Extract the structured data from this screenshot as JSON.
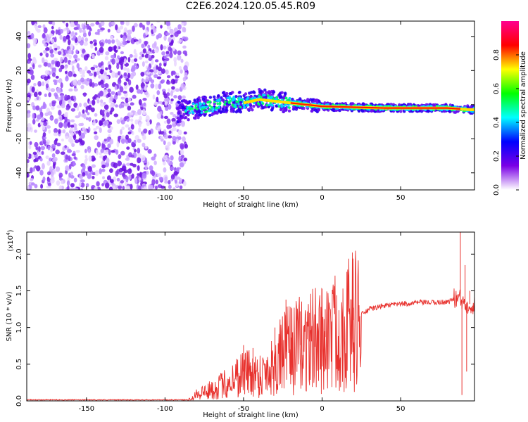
{
  "title": "C2E6.2024.120.05.45.R09",
  "chart_data": [
    {
      "type": "heatmap",
      "xlabel": "Height of straight line (km)",
      "ylabel": "Frequency (Hz)",
      "xlim": [
        -188,
        97
      ],
      "ylim": [
        -50,
        49
      ],
      "x_ticks": [
        -150,
        -100,
        -50,
        0,
        50
      ],
      "y_ticks": [
        -40,
        -20,
        0,
        20,
        40
      ],
      "x_tick_labels": [
        "-150",
        "-100",
        "-50",
        "0",
        "50"
      ],
      "y_tick_labels": [
        "-40",
        "-20",
        "0",
        "20",
        "40"
      ],
      "colorbar": {
        "label": "Normalized spectral amplitude",
        "range": [
          0,
          1
        ],
        "ticks": [
          0.0,
          0.2,
          0.4,
          0.6,
          0.8
        ],
        "tick_labels": [
          "0.0",
          "0.2",
          "0.4",
          "0.6",
          "0.8"
        ],
        "colors": [
          "#ffffff",
          "#7a00e6",
          "#0000ff",
          "#00ffff",
          "#00ff00",
          "#ffff00",
          "#ff0000",
          "#ff0090"
        ]
      },
      "ridge": [
        {
          "x": -90,
          "y": -4
        },
        {
          "x": -80,
          "y": -2
        },
        {
          "x": -70,
          "y": -1
        },
        {
          "x": -60,
          "y": 2
        },
        {
          "x": -50,
          "y": 1
        },
        {
          "x": -40,
          "y": 3
        },
        {
          "x": -30,
          "y": 2
        },
        {
          "x": -20,
          "y": 1
        },
        {
          "x": -10,
          "y": 0
        },
        {
          "x": 0,
          "y": -1
        },
        {
          "x": 20,
          "y": -1.5
        },
        {
          "x": 40,
          "y": -2
        },
        {
          "x": 60,
          "y": -2
        },
        {
          "x": 80,
          "y": -2
        },
        {
          "x": 95,
          "y": -3
        }
      ],
      "noise_region_x": [
        -188,
        -90
      ]
    },
    {
      "type": "line",
      "xlabel": "Height of straight line (km)",
      "ylabel": "SNR (10 * v/v)",
      "y_multiplier_label": "(x10",
      "y_multiplier_exp": "4",
      "y_multiplier_close": ")",
      "xlim": [
        -188,
        97
      ],
      "ylim": [
        0,
        23000
      ],
      "x_ticks": [
        -150,
        -100,
        -50,
        0,
        50
      ],
      "y_ticks": [
        0,
        5000,
        10000,
        15000,
        20000
      ],
      "x_tick_labels": [
        "-150",
        "-100",
        "-50",
        "0",
        "50"
      ],
      "y_tick_labels": [
        "0.0",
        "0.5",
        "1.0",
        "1.5",
        "2.0"
      ],
      "series": [
        {
          "color": "#e8322e",
          "points": [
            {
              "x": -188,
              "y": 150
            },
            {
              "x": -120,
              "y": 150
            },
            {
              "x": -85,
              "y": 150
            },
            {
              "x": -80,
              "y": 1000
            },
            {
              "x": -70,
              "y": 1500
            },
            {
              "x": -60,
              "y": 2500
            },
            {
              "x": -50,
              "y": 4000
            },
            {
              "x": -40,
              "y": 3500
            },
            {
              "x": -30,
              "y": 5000
            },
            {
              "x": -25,
              "y": 6500
            },
            {
              "x": -20,
              "y": 7000
            },
            {
              "x": -10,
              "y": 8000
            },
            {
              "x": 0,
              "y": 8500
            },
            {
              "x": 10,
              "y": 9500
            },
            {
              "x": 20,
              "y": 11000
            },
            {
              "x": 30,
              "y": 12500
            },
            {
              "x": 40,
              "y": 13000
            },
            {
              "x": 50,
              "y": 13200
            },
            {
              "x": 60,
              "y": 13400
            },
            {
              "x": 70,
              "y": 13400
            },
            {
              "x": 80,
              "y": 13500
            },
            {
              "x": 85,
              "y": 14000
            },
            {
              "x": 90,
              "y": 13500
            },
            {
              "x": 97,
              "y": 13000
            }
          ],
          "spikes": [
            {
              "x": -50,
              "y": 7600
            },
            {
              "x": -44,
              "y": 7200
            },
            {
              "x": -30,
              "y": 10000
            },
            {
              "x": -23,
              "y": 13800
            },
            {
              "x": -20,
              "y": 12800
            },
            {
              "x": -14,
              "y": 12200
            },
            {
              "x": -8,
              "y": 12000
            },
            {
              "x": 2,
              "y": 12500
            },
            {
              "x": 20,
              "y": 12700
            },
            {
              "x": 86,
              "y": 14500
            },
            {
              "x": 88,
              "y": 23000
            },
            {
              "x": 89,
              "y": 800
            },
            {
              "x": 91,
              "y": 18500
            },
            {
              "x": 92,
              "y": 4000
            },
            {
              "x": 94,
              "y": 15000
            }
          ]
        }
      ]
    }
  ]
}
